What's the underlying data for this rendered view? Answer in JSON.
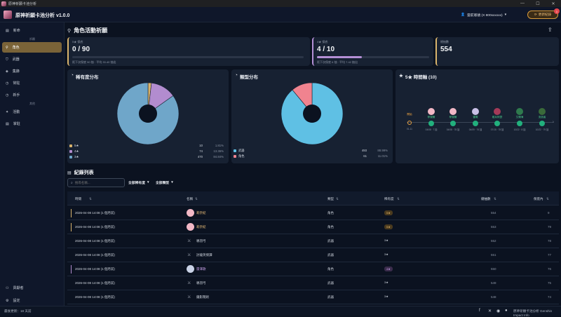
{
  "window": {
    "title": "原神祈願卡池分析",
    "min": "—",
    "max": "☐",
    "close": "✕"
  },
  "header": {
    "app_title": "原神祈願卡池分析 v1.0.0",
    "account": "當前賬號 (X 800xxxxxx)",
    "update_button": "更新紀錄",
    "update_badge": "1"
  },
  "sidebar": {
    "top": [
      {
        "label": "新命",
        "icon": "book-icon"
      }
    ],
    "section1": "祈願",
    "items": [
      {
        "label": "角色",
        "icon": "person-icon",
        "active": true
      },
      {
        "label": "武器",
        "icon": "shield-icon",
        "active": false
      },
      {
        "label": "集錄",
        "icon": "layers-icon",
        "active": false
      },
      {
        "label": "常駐",
        "icon": "clock-icon",
        "active": false
      },
      {
        "label": "新手",
        "icon": "clock-icon",
        "active": false
      }
    ],
    "section2": "其他",
    "items2": [
      {
        "label": "活動",
        "icon": "sparkle-icon"
      },
      {
        "label": "掌駐",
        "icon": "book-icon"
      }
    ],
    "bottom": [
      {
        "label": "貢獻者",
        "icon": "people-icon"
      },
      {
        "label": "設定",
        "icon": "gear-icon"
      }
    ]
  },
  "page": {
    "title": "角色活動祈願"
  },
  "stats": [
    {
      "label": "5★ 保底",
      "value": "0 / 90",
      "sub": "距下次保底 90 抽 · 平均 33.40 抽出",
      "progress": 0.0,
      "color": "#d9b46c"
    },
    {
      "label": "4★ 保底",
      "value": "4 / 10",
      "sub": "距下次保底 6 抽 · 平均 7.42 抽出",
      "progress": 0.4,
      "color": "#b48fd6"
    },
    {
      "label": "總抽數",
      "value": "554",
      "sub": "",
      "progress": null,
      "color": "#d9b46c"
    }
  ],
  "rarity_card": {
    "title": "稀有度分布",
    "legend": [
      {
        "label": "5★",
        "count": "10",
        "pct": "1.81%",
        "color": "#d8b36b"
      },
      {
        "label": "4★",
        "count": "74",
        "pct": "13.36%",
        "color": "#b28ccf"
      },
      {
        "label": "3★",
        "count": "470",
        "pct": "84.84%",
        "color": "#6fa6c9"
      }
    ]
  },
  "type_card": {
    "title": "類型分布",
    "legend": [
      {
        "label": "武器",
        "count": "493",
        "pct": "88.99%",
        "color": "#5fc0e4"
      },
      {
        "label": "角色",
        "count": "61",
        "pct": "11.01%",
        "color": "#f0838f"
      }
    ]
  },
  "timeline": {
    "title": "5★ 時間軸 (10)",
    "nodes": [
      {
        "name": "開始",
        "date": "01-11",
        "count": "",
        "color": "#d8a13c",
        "avatar": "#e8a040"
      },
      {
        "name": "菲謝爾",
        "date": "04/08 · 7 抽",
        "count": "7",
        "color": "#22b07d",
        "avatar": "#f2b8c6"
      },
      {
        "name": "菲謝爾",
        "date": "04/08 · 78 抽",
        "count": "78",
        "color": "#22b07d",
        "avatar": "#f2b8c6"
      },
      {
        "name": "雷電",
        "date": "04/09 · 76 抽",
        "count": "76",
        "color": "#22b07d",
        "avatar": "#c9c0e6"
      },
      {
        "name": "散兵阿瑟",
        "date": "07/15 · 78 抽",
        "count": "78",
        "color": "#22b07d",
        "avatar": "#a43a58"
      },
      {
        "name": "艾爾海",
        "date": "10/22 · 8 抽",
        "count": "8",
        "color": "#22b07d",
        "avatar": "#2f7a4d"
      },
      {
        "name": "流浪者",
        "date": "10/22 · 79 抽",
        "count": "79",
        "color": "#22b07d",
        "avatar": "#3a6a3a"
      }
    ]
  },
  "records": {
    "title": "紀錄列表",
    "search_placeholder": "搜尋名稱...",
    "filter_rarity": "全部稀有度",
    "filter_type": "全部類型",
    "headers": [
      "時間",
      "名稱",
      "類型",
      "稀有度",
      "總抽數",
      "保底內"
    ],
    "rows": [
      {
        "time": "2026-04-08 14:08 (1 個月前)",
        "name": "莉奈紀",
        "type": "角色",
        "rarity": "5★",
        "total": "554",
        "pity": "9",
        "accent": "#d8b36b",
        "avatar": "#f2b8c6",
        "rarity_style": "gold"
      },
      {
        "time": "2026-04-08 14:08 (1 個月前)",
        "name": "莉奈紀",
        "type": "角色",
        "rarity": "5★",
        "total": "553",
        "pity": "79",
        "accent": "#d8b36b",
        "avatar": "#f2b8c6",
        "rarity_style": "gold"
      },
      {
        "time": "2026-04-08 14:08 (1 個月前)",
        "name": "鴉羽弓",
        "type": "武器",
        "rarity": "3★",
        "total": "552",
        "pity": "78",
        "accent": "",
        "avatar": "",
        "rarity_style": "plain"
      },
      {
        "time": "2026-04-08 14:08 (1 個月前)",
        "name": "討龍英傑譚",
        "type": "武器",
        "rarity": "3★",
        "total": "551",
        "pity": "77",
        "accent": "",
        "avatar": "",
        "rarity_style": "plain"
      },
      {
        "time": "2026-04-08 14:08 (1 個月前)",
        "name": "雷澤歌",
        "type": "角色",
        "rarity": "4★",
        "total": "550",
        "pity": "76",
        "accent": "#b28ccf",
        "avatar": "#c9d2e6",
        "rarity_style": "purple"
      },
      {
        "time": "2026-04-08 14:08 (1 個月前)",
        "name": "鴉羽弓",
        "type": "武器",
        "rarity": "3★",
        "total": "549",
        "pity": "75",
        "accent": "",
        "avatar": "",
        "rarity_style": "plain"
      },
      {
        "time": "2026-04-08 14:08 (1 個月前)",
        "name": "鐵影闊劍",
        "type": "武器",
        "rarity": "3★",
        "total": "548",
        "pity": "74",
        "accent": "",
        "avatar": "",
        "rarity_style": "plain"
      }
    ]
  },
  "statusbar": {
    "left": "最後更新：18 天前",
    "right": "原神祈願卡池分析 Genshin Impact Info"
  }
}
